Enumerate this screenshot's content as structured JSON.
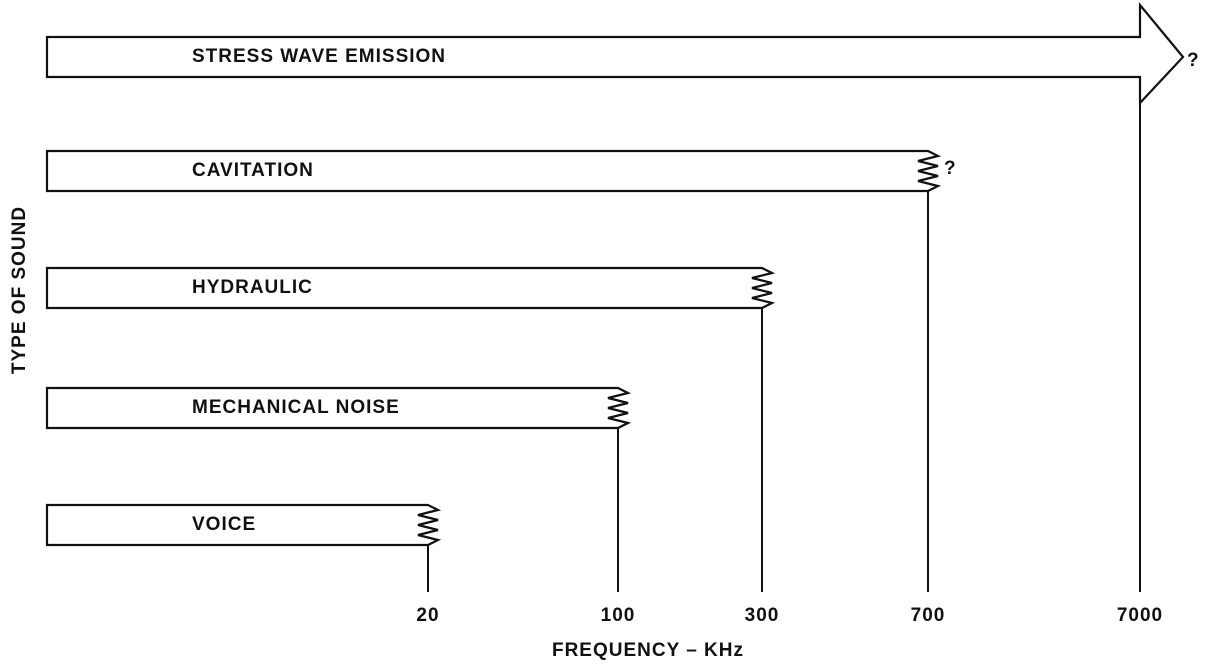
{
  "chart_data": {
    "type": "bar",
    "orientation": "horizontal",
    "ylabel": "TYPE OF SOUND",
    "xlabel": "FREQUENCY – KHz",
    "categories": [
      "STRESS WAVE EMISSION",
      "CAVITATION",
      "HYDRAULIC",
      "MECHANICAL NOISE",
      "VOICE"
    ],
    "values": [
      7000,
      700,
      300,
      100,
      20
    ],
    "annotations": [
      "?",
      "?"
    ],
    "xticks": [
      20,
      100,
      300,
      700,
      7000
    ],
    "color": "#ffffff"
  }
}
